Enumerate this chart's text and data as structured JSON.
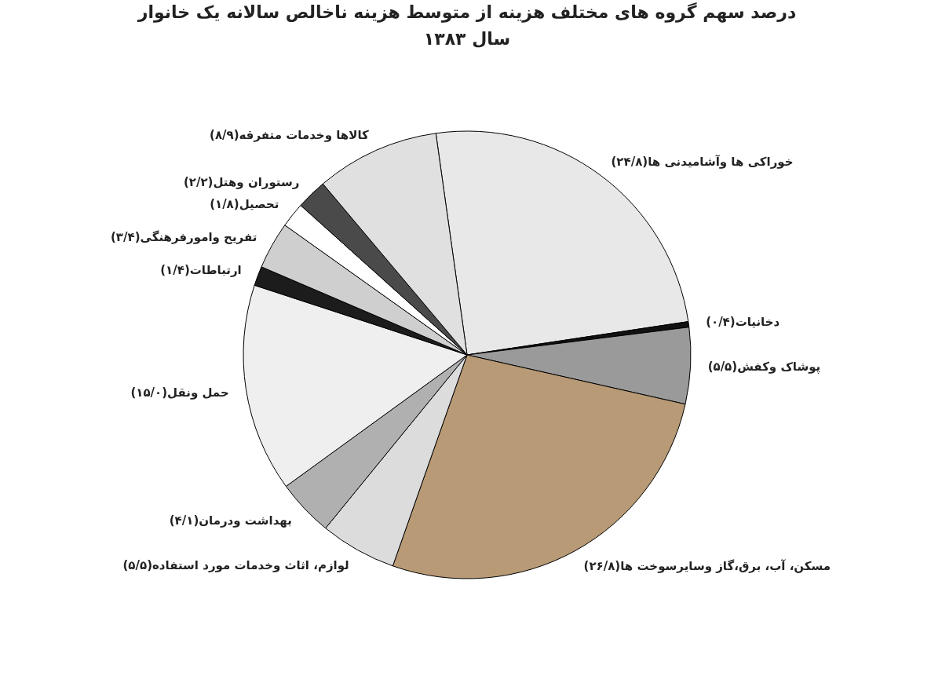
{
  "chart_data": {
    "type": "pie",
    "title": "درصد سهم گروه های مختلف هزینه از متوسط هزینه ناخالص سالانه یک خانوار",
    "subtitle": "سال ۱۳۸۳",
    "categories": [
      "خوراکی ها وآشامیدنی ها",
      "دخانیات",
      "پوشاک وکفش",
      "مسکن، آب، برق،گاز وسایرسوخت ها",
      "لوازم، اثاث وخدمات مورد استفاده",
      "بهداشت ودرمان",
      "حمل ونقل",
      "ارتباطات",
      "تفریح وامورفرهنگی",
      "تحصیل",
      "رستوران وهتل",
      "کالاها وخدمات متفرقه"
    ],
    "values": [
      24.8,
      0.4,
      5.5,
      26.8,
      5.5,
      4.1,
      15.0,
      1.4,
      3.4,
      1.8,
      2.2,
      8.9
    ],
    "value_labels": [
      "(۲۴/۸)",
      "(۰/۴)",
      "(۵/۵)",
      "(۲۶/۸)",
      "(۵/۵)",
      "(۴/۱)",
      "(۱۵/۰)",
      "(۱/۴)",
      "(۳/۴)",
      "(۱/۸)",
      "(۲/۲)",
      "(۸/۹)"
    ],
    "colors": [
      "#e8e8e8",
      "#111111",
      "#9a9a9a",
      "#b89a76",
      "#dcdcdc",
      "#b0b0b0",
      "#efefef",
      "#1c1c1c",
      "#cfcfcf",
      "#ffffff",
      "#4a4a4a",
      "#e0e0e0"
    ],
    "legend": false
  }
}
